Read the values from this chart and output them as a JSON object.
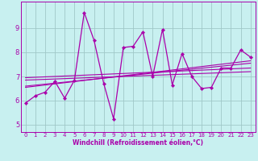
{
  "xlabel": "Windchill (Refroidissement éolien,°C)",
  "ylabel": "",
  "bg_color": "#c8f0f0",
  "grid_color": "#a0c8c8",
  "line_color": "#aa00aa",
  "xlim": [
    -0.5,
    23.5
  ],
  "ylim": [
    4.7,
    10.1
  ],
  "xticks": [
    0,
    1,
    2,
    3,
    4,
    5,
    6,
    7,
    8,
    9,
    10,
    11,
    12,
    13,
    14,
    15,
    16,
    17,
    18,
    19,
    20,
    21,
    22,
    23
  ],
  "yticks": [
    5,
    6,
    7,
    8,
    9
  ],
  "data_x": [
    0,
    1,
    2,
    3,
    4,
    5,
    6,
    7,
    8,
    9,
    10,
    11,
    12,
    13,
    14,
    15,
    16,
    17,
    18,
    19,
    20,
    21,
    22,
    23
  ],
  "data_y": [
    5.9,
    6.2,
    6.35,
    6.8,
    6.1,
    6.85,
    9.65,
    8.5,
    6.7,
    5.25,
    8.2,
    8.25,
    8.85,
    7.0,
    8.95,
    6.65,
    7.95,
    7.0,
    6.5,
    6.55,
    7.35,
    7.35,
    8.1,
    7.8
  ],
  "trend1_x": [
    0,
    23
  ],
  "trend1_y": [
    6.55,
    7.65
  ],
  "trend2_x": [
    0,
    23
  ],
  "trend2_y": [
    6.6,
    7.55
  ],
  "trend3_x": [
    0,
    23
  ],
  "trend3_y": [
    6.85,
    7.2
  ],
  "trend4_x": [
    0,
    23
  ],
  "trend4_y": [
    6.95,
    7.35
  ]
}
